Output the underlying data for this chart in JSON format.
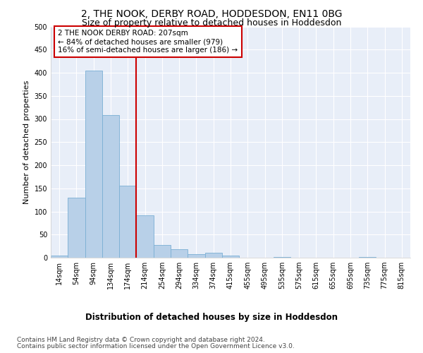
{
  "title": "2, THE NOOK, DERBY ROAD, HODDESDON, EN11 0BG",
  "subtitle": "Size of property relative to detached houses in Hoddesdon",
  "xlabel": "Distribution of detached houses by size in Hoddesdon",
  "ylabel": "Number of detached properties",
  "footer_line1": "Contains HM Land Registry data © Crown copyright and database right 2024.",
  "footer_line2": "Contains public sector information licensed under the Open Government Licence v3.0.",
  "bar_labels": [
    "14sqm",
    "54sqm",
    "94sqm",
    "134sqm",
    "174sqm",
    "214sqm",
    "254sqm",
    "294sqm",
    "334sqm",
    "374sqm",
    "415sqm",
    "455sqm",
    "495sqm",
    "535sqm",
    "575sqm",
    "615sqm",
    "655sqm",
    "695sqm",
    "735sqm",
    "775sqm",
    "815sqm"
  ],
  "bar_values": [
    5,
    130,
    405,
    308,
    155,
    92,
    28,
    19,
    8,
    11,
    4,
    0,
    0,
    2,
    0,
    0,
    0,
    0,
    2,
    0,
    0
  ],
  "bar_color": "#b8d0e8",
  "bar_edge_color": "#7aafd4",
  "property_line_x": 4.5,
  "property_value": 207,
  "annotation_text": "2 THE NOOK DERBY ROAD: 207sqm\n← 84% of detached houses are smaller (979)\n16% of semi-detached houses are larger (186) →",
  "annotation_box_color": "#ffffff",
  "annotation_box_edge_color": "#cc0000",
  "line_color": "#cc0000",
  "ylim": [
    0,
    500
  ],
  "yticks": [
    0,
    50,
    100,
    150,
    200,
    250,
    300,
    350,
    400,
    450,
    500
  ],
  "background_color": "#ffffff",
  "axes_background": "#e8eef8",
  "grid_color": "#ffffff",
  "title_fontsize": 10,
  "subtitle_fontsize": 9,
  "xlabel_fontsize": 8.5,
  "ylabel_fontsize": 8,
  "tick_fontsize": 7,
  "footer_fontsize": 6.5,
  "annotation_fontsize": 7.5
}
